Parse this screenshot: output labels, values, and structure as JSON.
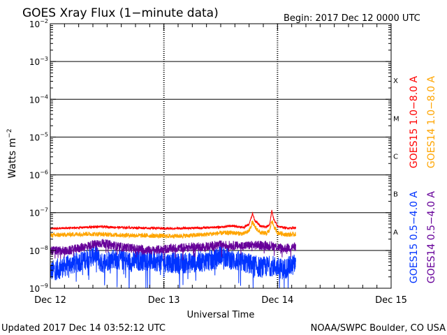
{
  "chart_data": {
    "type": "line",
    "title": "GOES Xray Flux (1−minute data)",
    "begin_label": "Begin:  2017 Dec 12 0000 UTC",
    "xlabel": "Universal Time",
    "ylabel_base": "Watts m",
    "ylabel_exp": "−2",
    "footer_left": "Updated 2017 Dec 14 03:52:12 UTC",
    "footer_right": "NOAA/SWPC Boulder, CO USA",
    "y_scale": "log",
    "ylim_exp": [
      -9,
      -2
    ],
    "y_ticks": [
      {
        "exp": -9,
        "base": "10",
        "sup": "−9"
      },
      {
        "exp": -8,
        "base": "10",
        "sup": "−8"
      },
      {
        "exp": -7,
        "base": "10",
        "sup": "−7"
      },
      {
        "exp": -6,
        "base": "10",
        "sup": "−6"
      },
      {
        "exp": -5,
        "base": "10",
        "sup": "−5"
      },
      {
        "exp": -4,
        "base": "10",
        "sup": "−4"
      },
      {
        "exp": -3,
        "base": "10",
        "sup": "−3"
      },
      {
        "exp": -2,
        "base": "10",
        "sup": "−2"
      }
    ],
    "xlim_days": [
      0,
      3
    ],
    "x_ticks": [
      {
        "day": 0,
        "label": "Dec 12"
      },
      {
        "day": 1,
        "label": "Dec 13"
      },
      {
        "day": 2,
        "label": "Dec 14"
      },
      {
        "day": 3,
        "label": "Dec 15"
      }
    ],
    "flare_classes": [
      {
        "label": "A",
        "exp": -8
      },
      {
        "label": "B",
        "exp": -7
      },
      {
        "label": "C",
        "exp": -6
      },
      {
        "label": "M",
        "exp": -5
      },
      {
        "label": "X",
        "exp": -4
      }
    ],
    "grid": "horizontal lines at each decade from 1e-8 to 1e-3",
    "legend_position": "right, vertical",
    "series": [
      {
        "name": "GOES15 1.0−8.0 A",
        "color": "#ff0000",
        "points": [
          [
            0.0,
            -7.42
          ],
          [
            0.15,
            -7.41
          ],
          [
            0.3,
            -7.39
          ],
          [
            0.45,
            -7.37
          ],
          [
            0.6,
            -7.39
          ],
          [
            0.75,
            -7.4
          ],
          [
            0.9,
            -7.41
          ],
          [
            1.05,
            -7.42
          ],
          [
            1.2,
            -7.41
          ],
          [
            1.35,
            -7.4
          ],
          [
            1.5,
            -7.38
          ],
          [
            1.6,
            -7.35
          ],
          [
            1.7,
            -7.39
          ],
          [
            1.75,
            -7.3
          ],
          [
            1.78,
            -7.02
          ],
          [
            1.8,
            -7.2
          ],
          [
            1.85,
            -7.36
          ],
          [
            1.9,
            -7.38
          ],
          [
            1.93,
            -7.32
          ],
          [
            1.95,
            -6.95
          ],
          [
            1.97,
            -7.2
          ],
          [
            2.0,
            -7.36
          ],
          [
            2.08,
            -7.41
          ],
          [
            2.16,
            -7.4
          ]
        ]
      },
      {
        "name": "GOES14 1.0−8.0 A",
        "color": "#ffa500",
        "points": [
          [
            0.0,
            -7.6
          ],
          [
            0.15,
            -7.58
          ],
          [
            0.3,
            -7.56
          ],
          [
            0.45,
            -7.57
          ],
          [
            0.6,
            -7.59
          ],
          [
            0.75,
            -7.6
          ],
          [
            0.9,
            -7.61
          ],
          [
            1.05,
            -7.62
          ],
          [
            1.2,
            -7.61
          ],
          [
            1.35,
            -7.58
          ],
          [
            1.5,
            -7.54
          ],
          [
            1.6,
            -7.53
          ],
          [
            1.7,
            -7.56
          ],
          [
            1.75,
            -7.48
          ],
          [
            1.78,
            -7.25
          ],
          [
            1.8,
            -7.38
          ],
          [
            1.85,
            -7.53
          ],
          [
            1.9,
            -7.55
          ],
          [
            1.93,
            -7.48
          ],
          [
            1.95,
            -7.2
          ],
          [
            1.97,
            -7.38
          ],
          [
            2.0,
            -7.53
          ],
          [
            2.08,
            -7.58
          ],
          [
            2.16,
            -7.57
          ]
        ]
      },
      {
        "name": "GOES15 0.5−4.0 A",
        "color": "#0033ff",
        "points": [
          [
            0.0,
            -8.55
          ],
          [
            0.1,
            -8.45
          ],
          [
            0.2,
            -8.35
          ],
          [
            0.3,
            -8.25
          ],
          [
            0.4,
            -8.1
          ],
          [
            0.45,
            -8.35
          ],
          [
            0.55,
            -8.2
          ],
          [
            0.7,
            -8.3
          ],
          [
            0.85,
            -8.25
          ],
          [
            1.0,
            -8.3
          ],
          [
            1.15,
            -8.35
          ],
          [
            1.3,
            -8.3
          ],
          [
            1.45,
            -8.25
          ],
          [
            1.5,
            -8.1
          ],
          [
            1.6,
            -8.25
          ],
          [
            1.75,
            -8.35
          ],
          [
            1.85,
            -8.45
          ],
          [
            1.95,
            -8.4
          ],
          [
            2.05,
            -8.5
          ],
          [
            2.16,
            -8.35
          ]
        ]
      },
      {
        "name": "GOES14 0.5−4.0 A",
        "color": "#660099",
        "points": [
          [
            0.0,
            -8.0
          ],
          [
            0.15,
            -8.02
          ],
          [
            0.3,
            -7.9
          ],
          [
            0.45,
            -7.8
          ],
          [
            0.6,
            -7.9
          ],
          [
            0.75,
            -7.95
          ],
          [
            0.9,
            -8.0
          ],
          [
            1.05,
            -7.95
          ],
          [
            1.2,
            -7.92
          ],
          [
            1.35,
            -7.9
          ],
          [
            1.5,
            -7.85
          ],
          [
            1.65,
            -7.88
          ],
          [
            1.8,
            -7.86
          ],
          [
            1.95,
            -7.87
          ],
          [
            2.05,
            -7.95
          ],
          [
            2.16,
            -7.9
          ]
        ]
      }
    ]
  }
}
